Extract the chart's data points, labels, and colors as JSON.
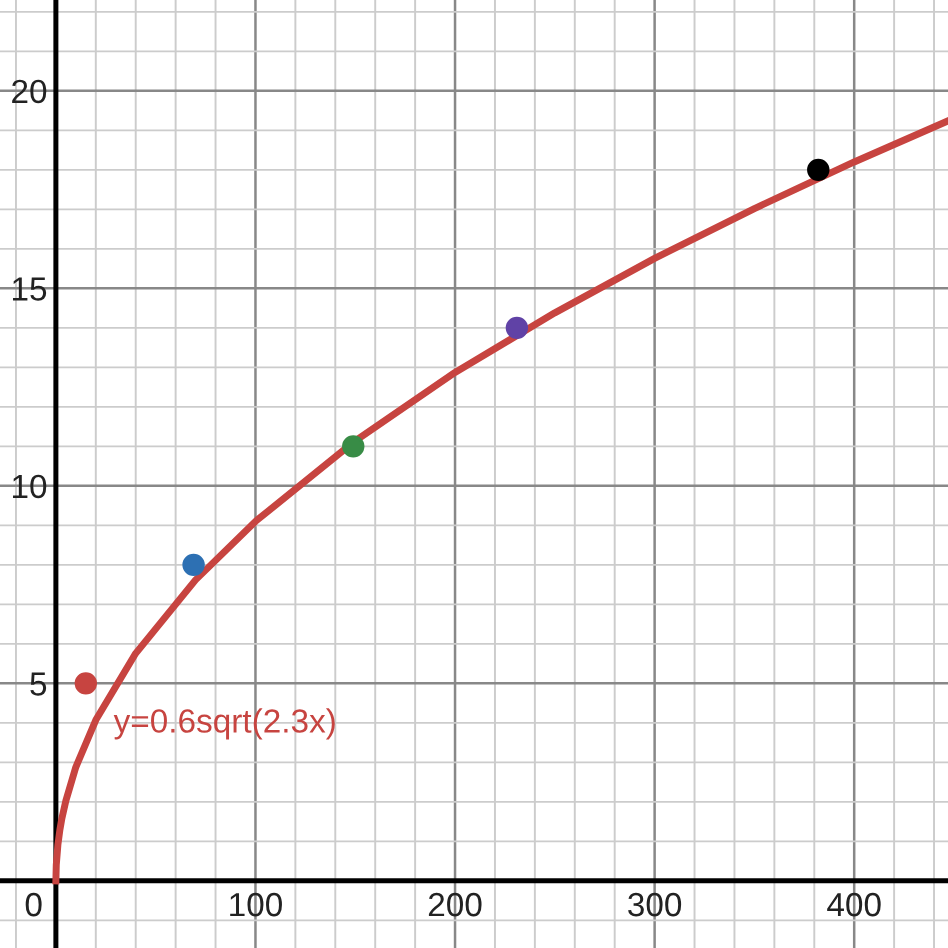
{
  "chart_data": {
    "type": "scatter",
    "xlim": [
      -28,
      447
    ],
    "ylim": [
      -1.7,
      22.3
    ],
    "xticks": [
      {
        "value": 0,
        "label": "0"
      },
      100,
      200,
      300,
      400
    ],
    "yticks": [
      {
        "value": 0,
        "label": null
      },
      5,
      10,
      15,
      20
    ],
    "grid": true,
    "marker": "circle",
    "series": [
      {
        "type": "line",
        "color": "#c74440",
        "line_style": "solid",
        "marker": "none",
        "x": [
          0,
          0.2,
          1,
          2,
          3,
          5,
          10,
          20,
          40,
          70,
          100,
          150,
          200,
          250,
          300,
          350,
          400,
          447
        ],
        "values": [
          0,
          0.41,
          0.91,
          1.29,
          1.58,
          2.03,
          2.88,
          4.07,
          5.76,
          7.62,
          9.1,
          11.14,
          12.87,
          14.38,
          15.76,
          17.02,
          18.2,
          19.24
        ]
      },
      {
        "color": "#c74440",
        "x": [
          15
        ],
        "values": [
          5
        ]
      },
      {
        "color": "#2d70b3",
        "x": [
          69
        ],
        "values": [
          8
        ]
      },
      {
        "color": "#388c46",
        "x": [
          149
        ],
        "values": [
          11
        ]
      },
      {
        "color": "#6042a6",
        "x": [
          231
        ],
        "values": [
          14
        ]
      },
      {
        "color": "#000000",
        "x": [
          382
        ],
        "values": [
          18
        ]
      }
    ],
    "annotations": [
      {
        "text": "y=0.6sqrt(2.3x)",
        "x": 15,
        "y": 5
      }
    ]
  }
}
